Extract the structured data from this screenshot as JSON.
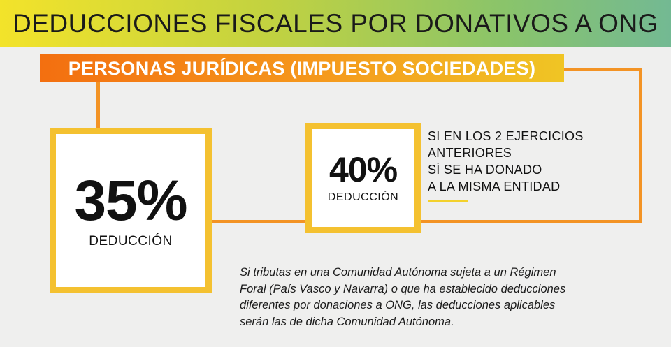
{
  "header": {
    "title": "DEDUCCIONES FISCALES POR DONATIVOS A ONG"
  },
  "banner": {
    "subtitle": "PERSONAS JURÍDICAS (IMPUESTO SOCIEDADES)"
  },
  "deduction_main": {
    "percentage": "35%",
    "label": "DEDUCCIÓN"
  },
  "deduction_repeat": {
    "percentage": "40%",
    "label": "DEDUCCIÓN"
  },
  "condition": {
    "lines": [
      "SI EN LOS 2 EJERCICIOS",
      "ANTERIORES",
      "SÍ SE HA DONADO",
      "A LA MISMA ENTIDAD"
    ]
  },
  "note": {
    "lines": [
      "Si tributas en una Comunidad Autónoma sujeta a un Régimen",
      "Foral (País Vasco y Navarra) o que ha establecido deducciones",
      "diferentes por donaciones a ONG, las deducciones aplicables",
      "serán las de dicha Comunidad Autónoma."
    ]
  },
  "colors": {
    "title_gradient_start": "#f3e32a",
    "title_gradient_end": "#73b993",
    "banner_orange": "#f36f10",
    "box_border_yellow": "#f4c130",
    "connector_orange": "#f39324",
    "background": "#efefee"
  }
}
